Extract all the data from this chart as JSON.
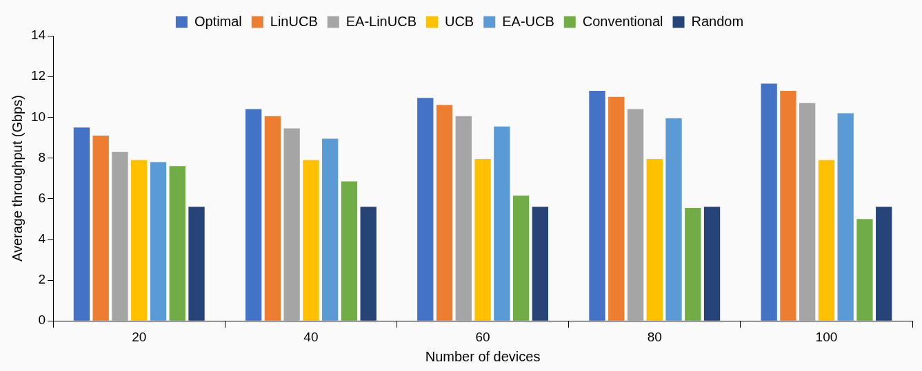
{
  "chart_data": {
    "type": "bar",
    "xlabel": "Number of devices",
    "ylabel": "Average throughput (Gbps)",
    "categories": [
      "20",
      "40",
      "60",
      "80",
      "100"
    ],
    "series": [
      {
        "name": "Optimal",
        "color": "#4472c4",
        "values": [
          9.5,
          10.4,
          10.95,
          11.3,
          11.65
        ]
      },
      {
        "name": "LinUCB",
        "color": "#ed7d31",
        "values": [
          9.1,
          10.05,
          10.6,
          11.0,
          11.3
        ]
      },
      {
        "name": "EA-LinUCB",
        "color": "#a5a5a5",
        "values": [
          8.3,
          9.45,
          10.05,
          10.4,
          10.7
        ]
      },
      {
        "name": "UCB",
        "color": "#ffc000",
        "values": [
          7.9,
          7.9,
          7.95,
          7.95,
          7.9
        ]
      },
      {
        "name": "EA-UCB",
        "color": "#5b9bd5",
        "values": [
          7.8,
          8.95,
          9.55,
          9.95,
          10.2
        ]
      },
      {
        "name": "Conventional",
        "color": "#70ad47",
        "values": [
          7.6,
          6.85,
          6.15,
          5.55,
          5.0
        ]
      },
      {
        "name": "Random",
        "color": "#264478",
        "values": [
          5.6,
          5.6,
          5.6,
          5.6,
          5.6
        ]
      }
    ],
    "ylim": [
      0,
      14
    ],
    "yticks": [
      0,
      2,
      4,
      6,
      8,
      10,
      12,
      14
    ],
    "grid": false,
    "legend": "top"
  }
}
